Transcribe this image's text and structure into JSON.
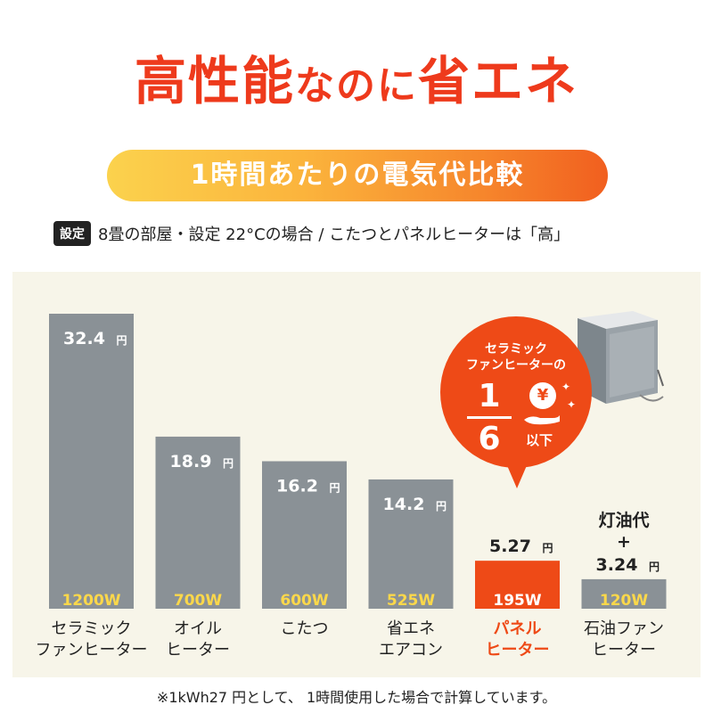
{
  "header": {
    "title_part1": "高性能",
    "title_part2": "なのに",
    "title_part3": "省エネ",
    "subtitle": "1時間あたりの電気代比較"
  },
  "setting": {
    "badge": "設定",
    "text": "8畳の部屋・設定 22°Cの場合 / こたつとパネルヒーターは「高」"
  },
  "callout": {
    "line1": "セラミック",
    "line2": "ファンヒーターの",
    "numerator": "1",
    "denominator": "6",
    "coin": "¥",
    "suffix": "以下"
  },
  "footnote": "※1kWh27 円として、 1時間使用した場合で計算しています。",
  "colors": {
    "title": "#ee3a1c",
    "bar_gray": "#8a9196",
    "bar_highlight": "#ee4a17",
    "watt_label": "#fcd84a",
    "panel_bg": "#f7f5e9"
  },
  "chart_data": {
    "type": "bar",
    "unit": "円",
    "ylim": [
      0,
      32.4
    ],
    "categories": [
      [
        "セラミック",
        "ファンヒーター"
      ],
      [
        "オイル",
        "ヒーター"
      ],
      [
        "こたつ"
      ],
      [
        "省エネ",
        "エアコン"
      ],
      [
        "パネル",
        "ヒーター"
      ],
      [
        "石油ファン",
        "ヒーター"
      ]
    ],
    "values": [
      32.4,
      18.9,
      16.2,
      14.2,
      5.27,
      3.24
    ],
    "value_labels": [
      "32.4",
      "18.9",
      "16.2",
      "14.2",
      "5.27",
      "3.24"
    ],
    "watts": [
      "1200W",
      "700W",
      "600W",
      "525W",
      "195W",
      "120W"
    ],
    "highlight_index": 4,
    "extra_label_above": {
      "index": 5,
      "lines": [
        "灯油代",
        "+"
      ]
    }
  }
}
